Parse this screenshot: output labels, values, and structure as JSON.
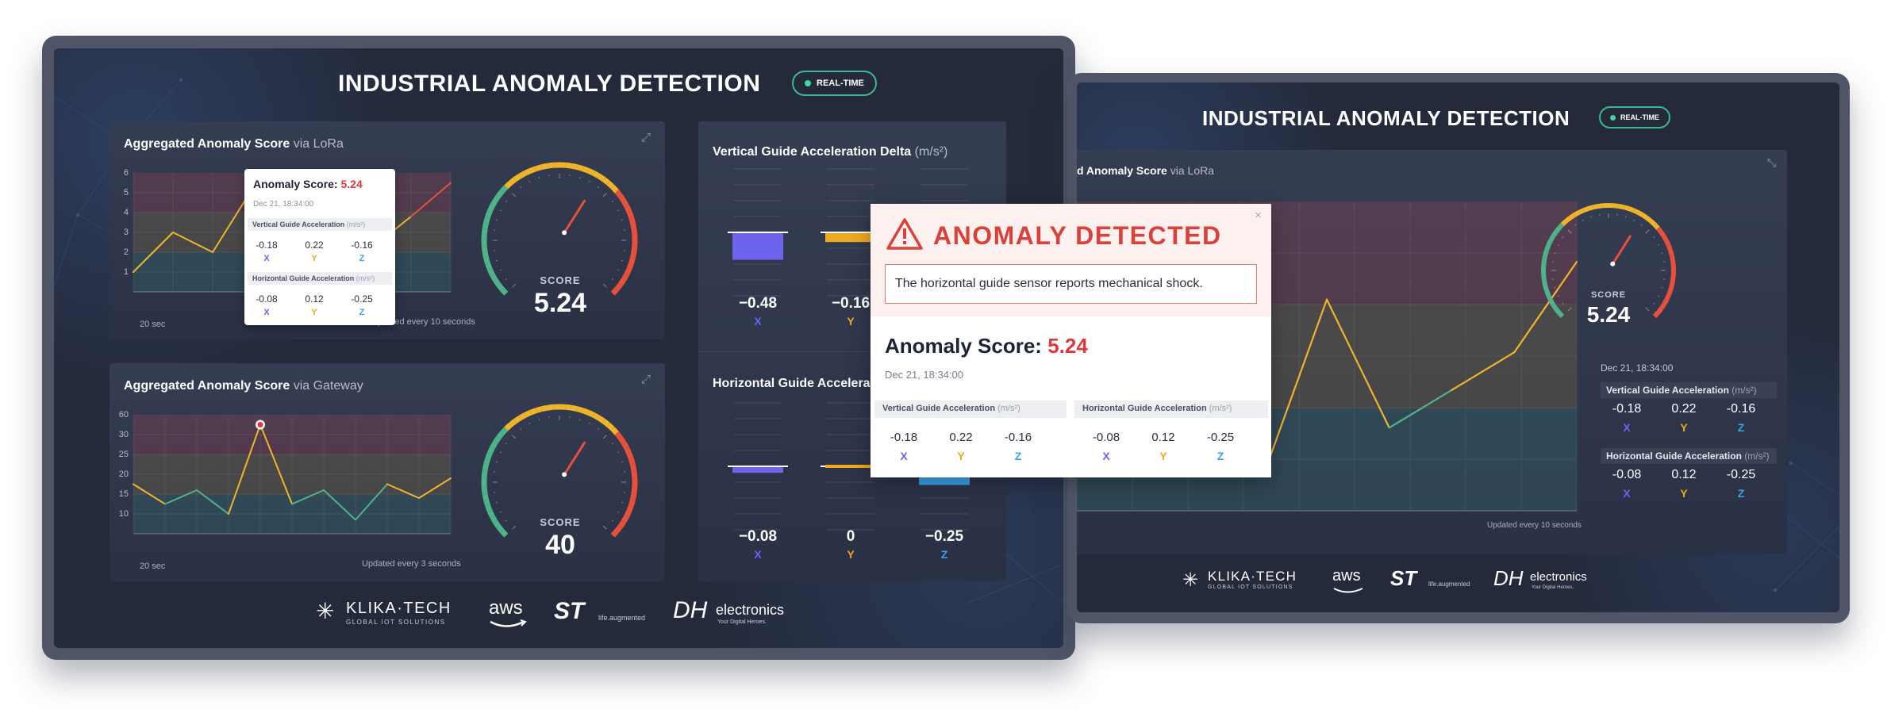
{
  "app": {
    "title": "INDUSTRIAL ANOMALY DETECTION",
    "badge": "REAL-TIME"
  },
  "panels": {
    "lora": {
      "title": "Aggregated Anomaly Score",
      "via": "via LoRa",
      "y_ticks": [
        "6",
        "5",
        "4",
        "3",
        "2",
        "1"
      ],
      "x_label": "20 sec",
      "updated": "Updated every 10 seconds",
      "gauge": {
        "label": "SCORE",
        "value": "5.24",
        "fraction": 0.62
      }
    },
    "gateway": {
      "title": "Aggregated Anomaly Score",
      "via": "via Gateway",
      "y_ticks": [
        "60",
        "30",
        "25",
        "20",
        "15",
        "10"
      ],
      "x_label": "20 sec",
      "updated": "Updated every 3 seconds",
      "gauge": {
        "label": "SCORE",
        "value": "40",
        "fraction": 0.62
      }
    },
    "vertical": {
      "title": "Vertical Guide Acceleration Delta",
      "unit": "(m/s²)",
      "values": [
        {
          "value": "−0.48",
          "axis": "X",
          "amount": -0.48
        },
        {
          "value": "−0.16",
          "axis": "Y",
          "amount": -0.16
        }
      ]
    },
    "horizontal": {
      "title": "Horizontal Guide Acceleration",
      "values": [
        {
          "value": "−0.08",
          "axis": "X",
          "amount": -0.08
        },
        {
          "value": "0",
          "axis": "Y",
          "amount": 0
        },
        {
          "value": "−0.25",
          "axis": "Z",
          "amount": -0.25
        }
      ]
    }
  },
  "tooltip": {
    "title": "Anomaly Score:",
    "score": "5.24",
    "timestamp": "Dec 21, 18:34:00",
    "vertical_label": "Vertical Guide Acceleration",
    "horizontal_label": "Horizontal Guide Acceleration",
    "unit": "(m/s²)",
    "vertical": [
      {
        "v": "-0.18",
        "a": "X"
      },
      {
        "v": "0.22",
        "a": "Y"
      },
      {
        "v": "-0.16",
        "a": "Z"
      }
    ],
    "horizontal": [
      {
        "v": "-0.08",
        "a": "X"
      },
      {
        "v": "0.12",
        "a": "Y"
      },
      {
        "v": "-0.25",
        "a": "Z"
      }
    ]
  },
  "alert": {
    "title": "ANOMALY DETECTED",
    "message": "The horizontal guide sensor reports mechanical shock.",
    "close": "×",
    "score_label": "Anomaly Score:",
    "score": "5.24",
    "timestamp": "Dec 21, 18:34:00",
    "vertical_label": "Vertical Guide Acceleration",
    "horizontal_label": "Horizontal Guide Acceleration",
    "unit": "(m/s²)",
    "vertical": [
      {
        "v": "-0.18",
        "a": "X"
      },
      {
        "v": "0.22",
        "a": "Y"
      },
      {
        "v": "-0.16",
        "a": "Z"
      }
    ],
    "horizontal": [
      {
        "v": "-0.08",
        "a": "X"
      },
      {
        "v": "0.12",
        "a": "Y"
      },
      {
        "v": "-0.25",
        "a": "Z"
      }
    ]
  },
  "right_screen": {
    "title": "INDUSTRIAL ANOMALY DETECTION",
    "badge": "REAL-TIME",
    "card_title": "d Anomaly Score",
    "card_via": "via LoRa",
    "updated": "Updated every 10 seconds",
    "gauge": {
      "label": "SCORE",
      "value": "5.24",
      "fraction": 0.62
    },
    "timestamp": "Dec 21, 18:34:00",
    "vertical_label": "Vertical Guide Acceleration",
    "horizontal_label": "Horizontal Guide Acceleration",
    "unit": "(m/s²)",
    "vertical": [
      {
        "v": "-0.18",
        "a": "X"
      },
      {
        "v": "0.22",
        "a": "Y"
      },
      {
        "v": "-0.16",
        "a": "Z"
      }
    ],
    "horizontal": [
      {
        "v": "-0.08",
        "a": "X"
      },
      {
        "v": "0.12",
        "a": "Y"
      },
      {
        "v": "-0.25",
        "a": "Z"
      }
    ]
  },
  "logos": {
    "klika": "KLIKA·TECH",
    "klika_sub": "GLOBAL IOT SOLUTIONS",
    "aws": "aws",
    "st": "ST",
    "st_sub": "life.augmented",
    "dh": "DH",
    "dh_text": "electronics",
    "dh_sub": "Your Digital Heroes."
  },
  "colors": {
    "X": "#6e63ee",
    "Y": "#f0a81e",
    "Z": "#3ba0e8",
    "danger": "#e0383a",
    "accent": "#3fb88f"
  },
  "chart_data": [
    {
      "type": "line",
      "title": "Aggregated Anomaly Score",
      "ylim": [
        0,
        6
      ],
      "series": [
        {
          "values": [
            1,
            3,
            2,
            5.2,
            2.5,
            3.2,
            2.2,
            3.8,
            5.5
          ]
        }
      ]
    },
    {
      "type": "line",
      "title": "Aggregated Anomaly Score",
      "ylim": [
        5,
        65
      ],
      "series": [
        {
          "values": [
            30,
            20,
            27,
            15,
            60,
            20,
            27,
            12,
            30,
            23,
            33
          ]
        }
      ]
    },
    {
      "type": "line",
      "title": "Aggregated Anomaly Score",
      "series": [
        {
          "values": [
            2.6,
            3,
            2.2,
            1.3,
            3.6,
            1.9,
            2.4,
            2.9,
            4.1
          ]
        }
      ]
    }
  ]
}
